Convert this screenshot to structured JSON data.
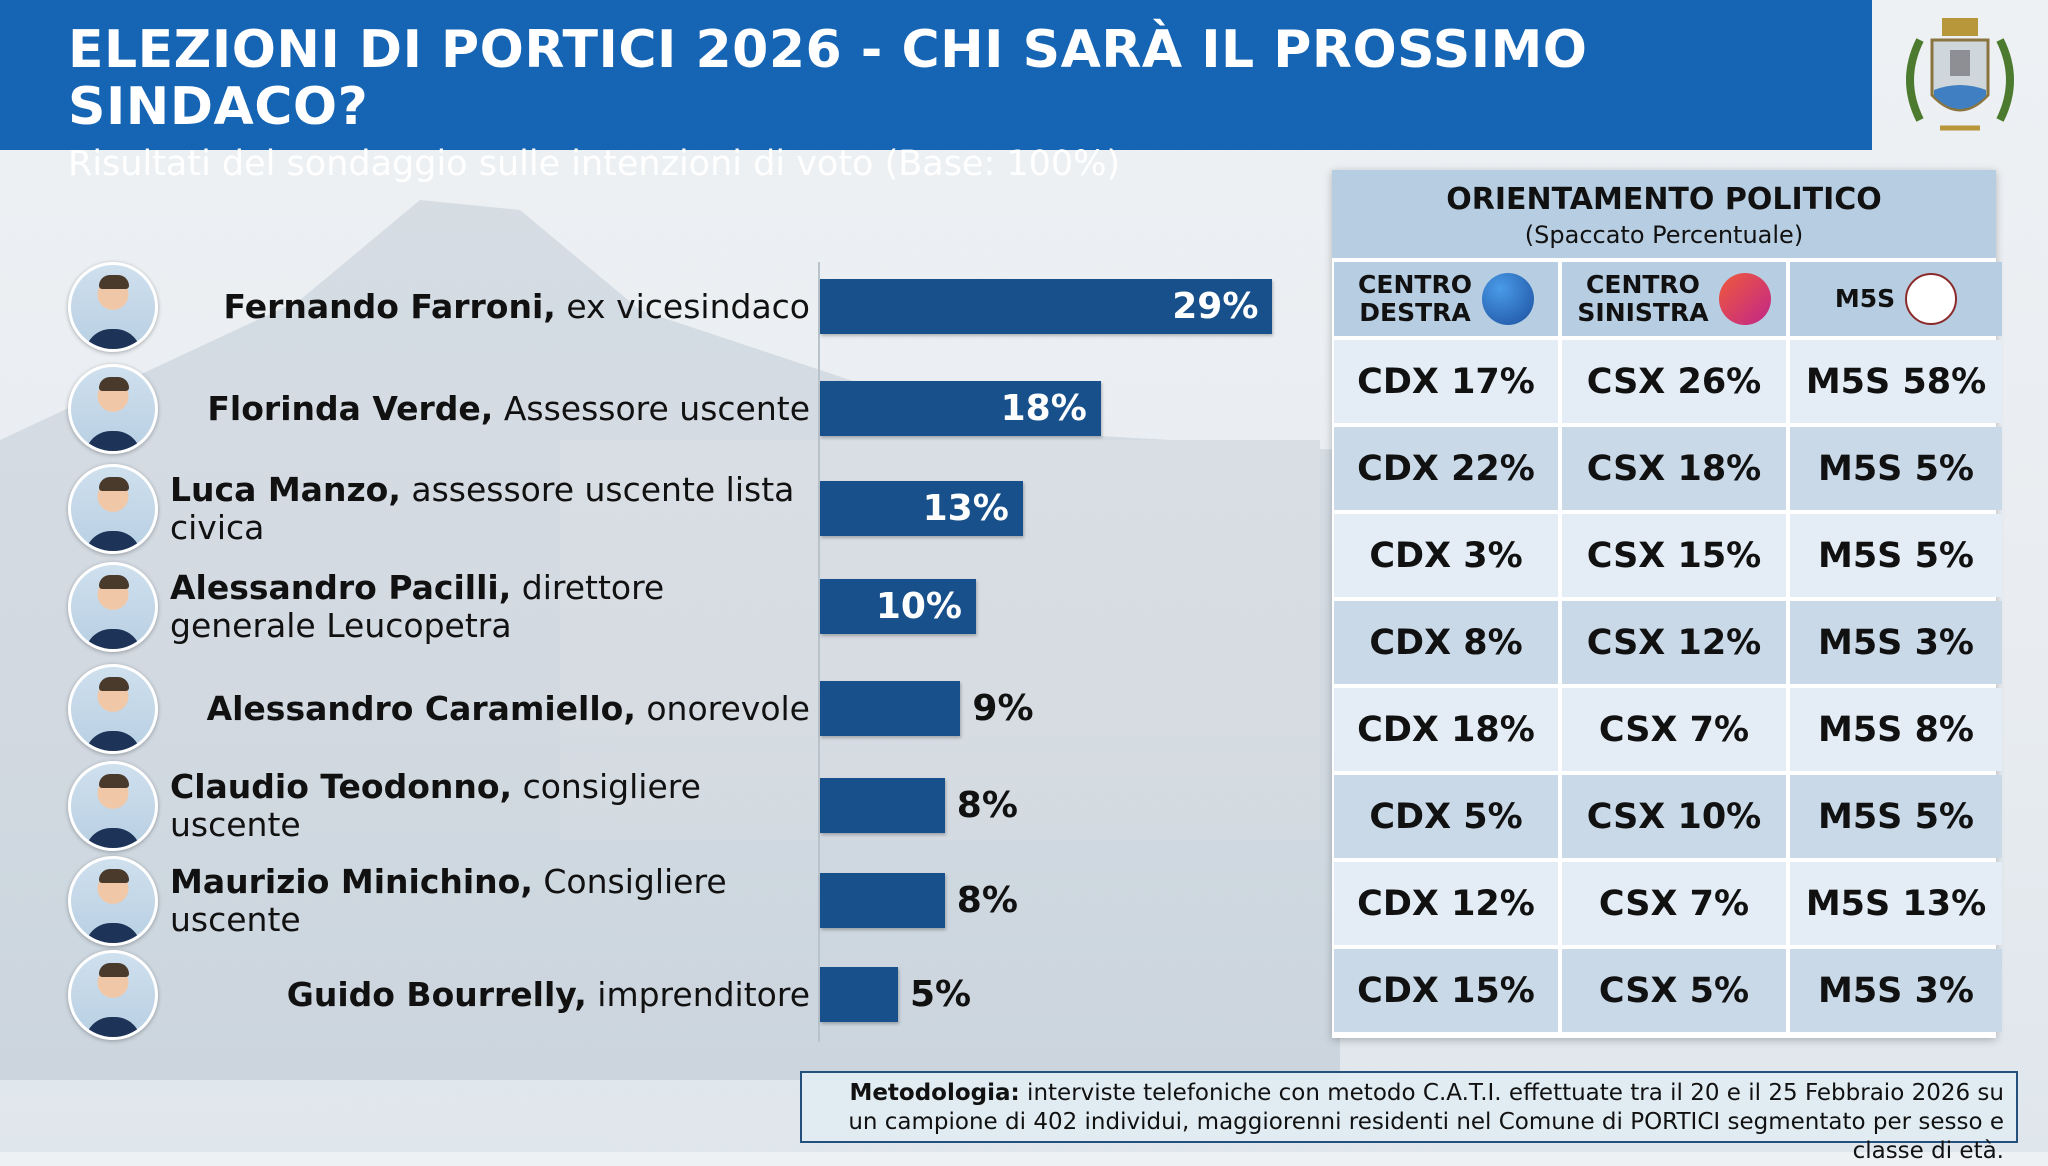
{
  "header": {
    "title": "ELEZIONI DI PORTICI 2026 - CHI SARÀ IL PROSSIMO SINDACO?",
    "subtitle": "Risultati del sondaggio sulle intenzioni di voto (Base: 100%)"
  },
  "colors": {
    "header": "#1565b4",
    "bar": "#17508a",
    "table_header": "#b7cde2"
  },
  "chart_data": {
    "type": "bar",
    "orientation": "horizontal",
    "title": "",
    "xlabel": "",
    "ylabel": "",
    "xlim": [
      0,
      29
    ],
    "categories": [
      {
        "name": "Fernando Farroni,",
        "role": "ex vicesindaco"
      },
      {
        "name": "Florinda Verde,",
        "role": "Assessore uscente"
      },
      {
        "name": "Luca Manzo,",
        "role": "assessore uscente lista civica"
      },
      {
        "name": "Alessandro Pacilli,",
        "role": "direttore generale Leucopetra"
      },
      {
        "name": "Alessandro Caramiello,",
        "role": "onorevole"
      },
      {
        "name": "Claudio Teodonno,",
        "role": "consigliere uscente"
      },
      {
        "name": "Maurizio Minichino,",
        "role": "Consigliere uscente"
      },
      {
        "name": "Guido Bourrelly,",
        "role": "imprenditore"
      }
    ],
    "values": [
      29,
      18,
      13,
      10,
      9,
      8,
      8,
      5
    ],
    "labels": [
      "29%",
      "18%",
      "13%",
      "10%",
      "9%",
      "8%",
      "8%",
      "5%"
    ]
  },
  "table": {
    "title": "ORIENTAMENTO POLITICO",
    "subtitle": "(Spaccato Percentuale)",
    "columns": [
      {
        "label_1": "CENTRO",
        "label_2": "DESTRA",
        "logo": "CENTRO DESTRA",
        "color": "#1b5fb5"
      },
      {
        "label_1": "CENTRO",
        "label_2": "SINISTRA",
        "logo": "CSX SINISTRA",
        "color": "#d8345f"
      },
      {
        "label_1": "M5S",
        "label_2": "",
        "logo": "MOVIMENTO",
        "color": "#ffffff"
      }
    ],
    "rows": [
      [
        "CDX 17%",
        "CSX 26%",
        "M5S 58%"
      ],
      [
        "CDX 22%",
        "CSX 18%",
        "M5S 5%"
      ],
      [
        "CDX 3%",
        "CSX 15%",
        "M5S 5%"
      ],
      [
        "CDX 8%",
        "CSX 12%",
        "M5S 3%"
      ],
      [
        "CDX 18%",
        "CSX 7%",
        "M5S 8%"
      ],
      [
        "CDX 5%",
        "CSX 10%",
        "M5S 5%"
      ],
      [
        "CDX 12%",
        "CSX 7%",
        "M5S 13%"
      ],
      [
        "CDX 15%",
        "CSX 5%",
        "M5S 3%"
      ]
    ]
  },
  "methodology": {
    "label": "Metodologia:",
    "text": " interviste telefoniche con metodo C.A.T.I. effettuate tra il 20 e il 25 Febbraio 2026 su un campione di 402 individui, maggiorenni residenti nel Comune di PORTICI segmentato per sesso e classe di età."
  }
}
